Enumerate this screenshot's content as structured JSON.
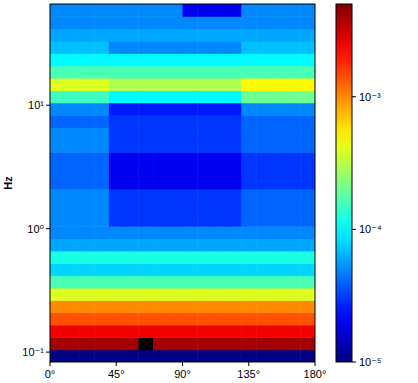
{
  "chart_data": {
    "type": "heatmap",
    "ylabel": "Hz",
    "log": "y",
    "xlim": [
      0,
      180
    ],
    "xticks": [
      {
        "value": 0,
        "label": "0°"
      },
      {
        "value": 45,
        "label": "45°"
      },
      {
        "value": 90,
        "label": "90°"
      },
      {
        "value": 135,
        "label": "135°"
      },
      {
        "value": 180,
        "label": "180°"
      }
    ],
    "ylim": [
      0.0832,
      66.07
    ],
    "yticks": [
      {
        "value": 0.1,
        "label": "10⁻¹"
      },
      {
        "value": 1,
        "label": "10⁰"
      },
      {
        "value": 10,
        "label": "10¹"
      }
    ],
    "clim": [
      1e-05,
      0.005
    ],
    "cticks": [
      {
        "value": 1e-05,
        "label": "10⁻⁵"
      },
      {
        "value": 0.0001,
        "label": "10⁻⁴"
      },
      {
        "value": 0.001,
        "label": "10⁻³"
      }
    ],
    "xbins": [
      0,
      10,
      20,
      30,
      40,
      50,
      60,
      70,
      80,
      90,
      100,
      110,
      120,
      130,
      140,
      150,
      160,
      170,
      180
    ],
    "ybins": [
      0.0832,
      0.1047,
      0.1318,
      0.166,
      0.2089,
      0.263,
      0.3311,
      0.4169,
      0.5248,
      0.6607,
      0.8318,
      1.047,
      1.318,
      1.66,
      2.089,
      2.63,
      3.311,
      4.169,
      5.248,
      6.607,
      8.318,
      10.47,
      13.18,
      16.6,
      20.89,
      26.3,
      33.11,
      41.69,
      52.48,
      66.07
    ],
    "z": [
      [
        1e-05,
        1e-05,
        1e-05,
        1e-05,
        1e-05,
        1e-05,
        1e-05,
        1e-05,
        1e-05,
        1e-05,
        1e-05,
        1e-05,
        1e-05,
        1e-05,
        1e-05,
        1e-05,
        1e-05,
        1e-05
      ],
      [
        0.004,
        0.004,
        0.004,
        0.004,
        0.004,
        0.004,
        0.02,
        0.004,
        0.004,
        0.004,
        0.004,
        0.004,
        0.004,
        0.004,
        0.004,
        0.004,
        0.004,
        0.004
      ],
      [
        0.0025,
        0.0025,
        0.0025,
        0.0025,
        0.0025,
        0.0025,
        0.0025,
        0.0025,
        0.0025,
        0.0025,
        0.0025,
        0.0025,
        0.0025,
        0.0025,
        0.0025,
        0.0025,
        0.0025,
        0.0025
      ],
      [
        0.0014,
        0.0014,
        0.0014,
        0.0014,
        0.0014,
        0.0014,
        0.0014,
        0.0014,
        0.0014,
        0.0014,
        0.0014,
        0.0014,
        0.0014,
        0.0014,
        0.0014,
        0.0014,
        0.0014,
        0.0014
      ],
      [
        0.001,
        0.001,
        0.001,
        0.001,
        0.001,
        0.001,
        0.001,
        0.001,
        0.001,
        0.001,
        0.001,
        0.001,
        0.001,
        0.001,
        0.001,
        0.001,
        0.001,
        0.001
      ],
      [
        0.0004,
        0.0004,
        0.0004,
        0.0004,
        0.0004,
        0.0004,
        0.0004,
        0.0004,
        0.0004,
        0.0004,
        0.0004,
        0.0004,
        0.0004,
        0.0004,
        0.0004,
        0.0004,
        0.0004,
        0.0004
      ],
      [
        0.00016,
        0.00016,
        0.00016,
        0.00016,
        0.00016,
        0.00016,
        0.00016,
        0.00016,
        0.00016,
        0.00016,
        0.00016,
        0.00016,
        0.00016,
        0.00016,
        0.00016,
        0.00016,
        0.00016,
        0.00016
      ],
      [
        8e-05,
        8e-05,
        8e-05,
        8e-05,
        8e-05,
        8e-05,
        8e-05,
        8e-05,
        8e-05,
        8e-05,
        8e-05,
        8e-05,
        8e-05,
        8e-05,
        8e-05,
        8e-05,
        8e-05,
        8e-05
      ],
      [
        0.00012,
        0.00012,
        0.00012,
        0.00012,
        0.00012,
        0.00012,
        0.00012,
        0.00012,
        0.00012,
        0.00012,
        0.00012,
        0.00012,
        0.00012,
        0.00012,
        0.00012,
        0.00012,
        0.00012,
        0.00012
      ],
      [
        6e-05,
        6e-05,
        6e-05,
        6e-05,
        6e-05,
        6e-05,
        6e-05,
        6e-05,
        6e-05,
        6e-05,
        6e-05,
        6e-05,
        6e-05,
        6e-05,
        6e-05,
        6e-05,
        6e-05,
        6e-05
      ],
      [
        5e-05,
        5e-05,
        5e-05,
        5e-05,
        5e-05,
        5e-05,
        5e-05,
        5e-05,
        5e-05,
        5e-05,
        5e-05,
        5e-05,
        5e-05,
        5e-05,
        5e-05,
        5e-05,
        5e-05,
        5e-05
      ],
      [
        5e-05,
        5e-05,
        5e-05,
        5e-05,
        3e-05,
        3e-05,
        3e-05,
        3e-05,
        3e-05,
        3e-05,
        3e-05,
        3e-05,
        3e-05,
        4e-05,
        4e-05,
        4e-05,
        4e-05,
        4e-05
      ],
      [
        5e-05,
        5e-05,
        5e-05,
        5e-05,
        3e-05,
        3e-05,
        3e-05,
        3e-05,
        3e-05,
        3e-05,
        3e-05,
        3e-05,
        3e-05,
        4e-05,
        4e-05,
        4e-05,
        4e-05,
        4e-05
      ],
      [
        5e-05,
        5e-05,
        5e-05,
        5e-05,
        3e-05,
        3e-05,
        3e-05,
        3e-05,
        3e-05,
        3e-05,
        3e-05,
        3e-05,
        3e-05,
        4e-05,
        4e-05,
        4e-05,
        4e-05,
        4e-05
      ],
      [
        4e-05,
        4e-05,
        4e-05,
        4e-05,
        2e-05,
        2e-05,
        2e-05,
        2e-05,
        2e-05,
        2e-05,
        2e-05,
        2e-05,
        2e-05,
        3e-05,
        3e-05,
        3e-05,
        3e-05,
        3e-05
      ],
      [
        4e-05,
        4e-05,
        4e-05,
        4e-05,
        2e-05,
        2e-05,
        2e-05,
        2e-05,
        2e-05,
        2e-05,
        2e-05,
        2e-05,
        2e-05,
        3e-05,
        3e-05,
        3e-05,
        3e-05,
        3e-05
      ],
      [
        4e-05,
        4e-05,
        4e-05,
        4e-05,
        2e-05,
        2e-05,
        2e-05,
        2e-05,
        2e-05,
        2e-05,
        2e-05,
        2e-05,
        2e-05,
        3e-05,
        3e-05,
        3e-05,
        3e-05,
        3e-05
      ],
      [
        5e-05,
        5e-05,
        5e-05,
        5e-05,
        3e-05,
        3e-05,
        3e-05,
        3e-05,
        3e-05,
        3e-05,
        3e-05,
        3e-05,
        3e-05,
        4e-05,
        4e-05,
        4e-05,
        4e-05,
        4e-05
      ],
      [
        5e-05,
        5e-05,
        5e-05,
        5e-05,
        3e-05,
        3e-05,
        3e-05,
        3e-05,
        3e-05,
        3e-05,
        3e-05,
        3e-05,
        3e-05,
        4e-05,
        4e-05,
        4e-05,
        4e-05,
        4e-05
      ],
      [
        4e-05,
        4e-05,
        4e-05,
        4e-05,
        3e-05,
        3e-05,
        3e-05,
        3e-05,
        3e-05,
        3e-05,
        3e-05,
        3e-05,
        3e-05,
        4e-05,
        4e-05,
        4e-05,
        4e-05,
        4e-05
      ],
      [
        5e-05,
        5e-05,
        5e-05,
        5e-05,
        2.5e-05,
        2.5e-05,
        2.5e-05,
        2.5e-05,
        2.5e-05,
        2.5e-05,
        2.5e-05,
        2.5e-05,
        2.5e-05,
        5e-05,
        5e-05,
        5e-05,
        5e-05,
        5e-05
      ],
      [
        0.00015,
        0.00015,
        0.00015,
        0.00015,
        0.0001,
        0.0001,
        0.0001,
        0.0001,
        0.0001,
        0.0001,
        0.0001,
        0.0001,
        0.0001,
        0.0002,
        0.0002,
        0.0002,
        0.0002,
        0.0002
      ],
      [
        0.0004,
        0.0004,
        0.0004,
        0.0004,
        0.0003,
        0.0003,
        0.0003,
        0.0003,
        0.0003,
        0.0003,
        0.0003,
        0.0003,
        0.0003,
        0.0005,
        0.0005,
        0.0005,
        0.0005,
        0.0005
      ],
      [
        0.00016,
        0.00016,
        0.00016,
        0.00016,
        0.00016,
        0.00016,
        0.00016,
        0.00016,
        0.00016,
        0.00016,
        0.00016,
        0.00016,
        0.00016,
        0.00016,
        0.00016,
        0.00016,
        0.00016,
        0.00016
      ],
      [
        0.0001,
        0.0001,
        0.0001,
        0.0001,
        0.0001,
        0.0001,
        0.0001,
        0.0001,
        0.0001,
        0.0001,
        0.0001,
        0.0001,
        0.0001,
        0.0001,
        0.0001,
        0.0001,
        0.0001,
        0.0001
      ],
      [
        7e-05,
        7e-05,
        7e-05,
        7e-05,
        5e-05,
        5e-05,
        5e-05,
        5e-05,
        5e-05,
        5e-05,
        5e-05,
        5e-05,
        5e-05,
        7e-05,
        7e-05,
        7e-05,
        7e-05,
        7e-05
      ],
      [
        6e-05,
        6e-05,
        6e-05,
        6e-05,
        6e-05,
        6e-05,
        6e-05,
        6e-05,
        6e-05,
        6e-05,
        6e-05,
        6e-05,
        6e-05,
        6e-05,
        6e-05,
        6e-05,
        6e-05,
        6e-05
      ],
      [
        5e-05,
        5e-05,
        5e-05,
        5e-05,
        5e-05,
        5e-05,
        5e-05,
        5e-05,
        5e-05,
        5e-05,
        5e-05,
        5e-05,
        5e-05,
        5e-05,
        5e-05,
        5e-05,
        5e-05,
        5e-05
      ],
      [
        5e-05,
        5e-05,
        5e-05,
        5e-05,
        5e-05,
        5e-05,
        5e-05,
        5e-05,
        5e-05,
        2e-05,
        2e-05,
        2e-05,
        2e-05,
        5e-05,
        5e-05,
        5e-05,
        5e-05,
        5e-05
      ]
    ]
  }
}
